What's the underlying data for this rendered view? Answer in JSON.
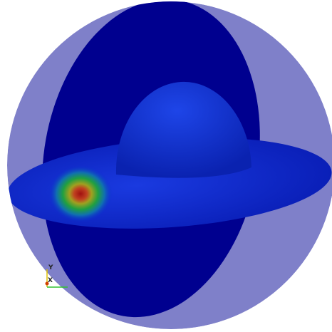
{
  "axes": {
    "labels": [
      "Y",
      "X"
    ]
  }
}
